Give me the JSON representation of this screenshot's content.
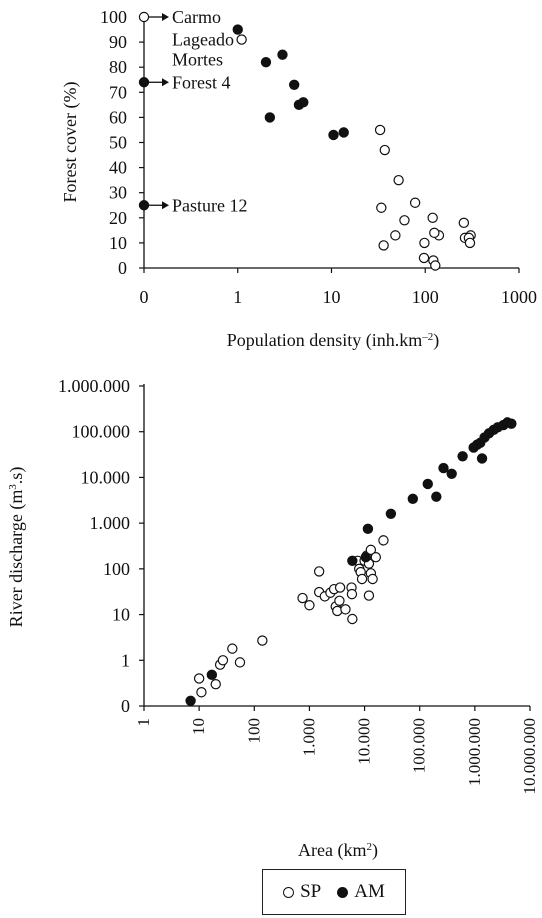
{
  "chart_data": [
    {
      "type": "scatter",
      "title": "",
      "xlabel": "Population density (inh.km⁻²)",
      "ylabel": "Forest cover (%)",
      "xscale": "symlog",
      "xticks": [
        0,
        1,
        10,
        100,
        1000
      ],
      "xtick_labels": [
        "0",
        "1",
        "10",
        "100",
        "1000"
      ],
      "xlim": [
        0,
        1000
      ],
      "yticks": [
        0,
        10,
        20,
        30,
        40,
        50,
        60,
        70,
        80,
        90,
        100
      ],
      "ytick_labels": [
        "0",
        "10",
        "20",
        "30",
        "40",
        "50",
        "60",
        "70",
        "80",
        "90",
        "100"
      ],
      "ylim": [
        0,
        100
      ],
      "grid": false,
      "series": [
        {
          "name": "SP",
          "marker": "open",
          "points": [
            {
              "x": 0,
              "y": 100
            },
            {
              "x": 1.1,
              "y": 91
            },
            {
              "x": 33,
              "y": 55
            },
            {
              "x": 37,
              "y": 47
            },
            {
              "x": 52,
              "y": 35
            },
            {
              "x": 78,
              "y": 26
            },
            {
              "x": 34,
              "y": 24
            },
            {
              "x": 120,
              "y": 20
            },
            {
              "x": 60,
              "y": 19
            },
            {
              "x": 140,
              "y": 13
            },
            {
              "x": 125,
              "y": 14
            },
            {
              "x": 48,
              "y": 13
            },
            {
              "x": 98,
              "y": 10
            },
            {
              "x": 36,
              "y": 9
            },
            {
              "x": 97,
              "y": 4
            },
            {
              "x": 122,
              "y": 3
            },
            {
              "x": 128,
              "y": 1
            },
            {
              "x": 258,
              "y": 18
            },
            {
              "x": 265,
              "y": 12
            },
            {
              "x": 305,
              "y": 13
            },
            {
              "x": 292,
              "y": 12
            },
            {
              "x": 300,
              "y": 10
            }
          ]
        },
        {
          "name": "AM",
          "marker": "filled",
          "points": [
            {
              "x": 0,
              "y": 74
            },
            {
              "x": 0,
              "y": 25
            },
            {
              "x": 1.0,
              "y": 95
            },
            {
              "x": 2.0,
              "y": 82
            },
            {
              "x": 3.0,
              "y": 85
            },
            {
              "x": 4.0,
              "y": 73
            },
            {
              "x": 4.5,
              "y": 65
            },
            {
              "x": 5.0,
              "y": 66
            },
            {
              "x": 2.2,
              "y": 60
            },
            {
              "x": 10.5,
              "y": 53
            },
            {
              "x": 13.5,
              "y": 54
            }
          ]
        }
      ],
      "annotations": [
        {
          "text": "Carmo",
          "x": 0,
          "y": 100,
          "arrow": true
        },
        {
          "text": "Lageado",
          "x": 1.1,
          "y": 91,
          "arrow": false
        },
        {
          "text": "Mortes",
          "x": 1.1,
          "y": 83,
          "arrow": false
        },
        {
          "text": "Forest 4",
          "x": 0,
          "y": 74,
          "arrow": true
        },
        {
          "text": "Pasture 12",
          "x": 0,
          "y": 25,
          "arrow": true
        }
      ]
    },
    {
      "type": "scatter",
      "title": "",
      "xlabel": "Area (km²)",
      "ylabel": "River discharge (m³.s)",
      "xscale": "log",
      "yscale": "log",
      "xlim": [
        1,
        10000000
      ],
      "ylim": [
        0.1,
        1000000
      ],
      "xtick_values": [
        1,
        10,
        100,
        1000,
        10000,
        100000,
        1000000,
        10000000
      ],
      "xtick_labels": [
        "1",
        "10",
        "100",
        "1.000",
        "10.000",
        "100.000",
        "1.000.000",
        "10.000.000"
      ],
      "ytick_values": [
        0.1,
        1,
        10,
        100,
        1000,
        10000,
        100000,
        1000000
      ],
      "ytick_labels": [
        "0",
        "1",
        "10",
        "100",
        "1.000",
        "10.000",
        "100.000",
        "1.000.000"
      ],
      "grid": false,
      "legend": {
        "position": "bottom",
        "entries": [
          "SP",
          "AM"
        ]
      },
      "series": [
        {
          "name": "SP",
          "marker": "open",
          "points": [
            {
              "x": 10,
              "y": 0.4
            },
            {
              "x": 11,
              "y": 0.2
            },
            {
              "x": 20,
              "y": 0.3
            },
            {
              "x": 24,
              "y": 0.8
            },
            {
              "x": 27,
              "y": 1.0
            },
            {
              "x": 40,
              "y": 1.8
            },
            {
              "x": 55,
              "y": 0.9
            },
            {
              "x": 140,
              "y": 2.7
            },
            {
              "x": 750,
              "y": 23
            },
            {
              "x": 1000,
              "y": 16
            },
            {
              "x": 1500,
              "y": 88
            },
            {
              "x": 1500,
              "y": 31
            },
            {
              "x": 1900,
              "y": 25
            },
            {
              "x": 2400,
              "y": 30
            },
            {
              "x": 2800,
              "y": 36
            },
            {
              "x": 3000,
              "y": 15
            },
            {
              "x": 3200,
              "y": 12
            },
            {
              "x": 3600,
              "y": 39
            },
            {
              "x": 3500,
              "y": 20
            },
            {
              "x": 4500,
              "y": 13
            },
            {
              "x": 5800,
              "y": 39
            },
            {
              "x": 5900,
              "y": 28
            },
            {
              "x": 6000,
              "y": 8
            },
            {
              "x": 7500,
              "y": 150
            },
            {
              "x": 8000,
              "y": 100
            },
            {
              "x": 8500,
              "y": 85
            },
            {
              "x": 9000,
              "y": 60
            },
            {
              "x": 10000,
              "y": 150
            },
            {
              "x": 11000,
              "y": 195
            },
            {
              "x": 12000,
              "y": 130
            },
            {
              "x": 12000,
              "y": 26
            },
            {
              "x": 13000,
              "y": 260
            },
            {
              "x": 13000,
              "y": 80
            },
            {
              "x": 14000,
              "y": 60
            },
            {
              "x": 16000,
              "y": 180
            },
            {
              "x": 22000,
              "y": 420
            }
          ]
        },
        {
          "name": "AM",
          "marker": "filled",
          "points": [
            {
              "x": 7,
              "y": 0.13
            },
            {
              "x": 17,
              "y": 0.48
            },
            {
              "x": 6000,
              "y": 150
            },
            {
              "x": 10500,
              "y": 180
            },
            {
              "x": 11500,
              "y": 750
            },
            {
              "x": 30000,
              "y": 1600
            },
            {
              "x": 75000,
              "y": 3400
            },
            {
              "x": 140000,
              "y": 7200
            },
            {
              "x": 200000,
              "y": 3800
            },
            {
              "x": 270000,
              "y": 16000
            },
            {
              "x": 380000,
              "y": 12000
            },
            {
              "x": 600000,
              "y": 29000
            },
            {
              "x": 950000,
              "y": 45000
            },
            {
              "x": 1100000,
              "y": 52000
            },
            {
              "x": 1250000,
              "y": 57000
            },
            {
              "x": 1350000,
              "y": 26000
            },
            {
              "x": 1500000,
              "y": 75000
            },
            {
              "x": 1800000,
              "y": 92000
            },
            {
              "x": 2200000,
              "y": 110000
            },
            {
              "x": 2600000,
              "y": 125000
            },
            {
              "x": 3300000,
              "y": 140000
            },
            {
              "x": 3900000,
              "y": 160000
            },
            {
              "x": 4600000,
              "y": 150000
            }
          ]
        }
      ]
    }
  ]
}
